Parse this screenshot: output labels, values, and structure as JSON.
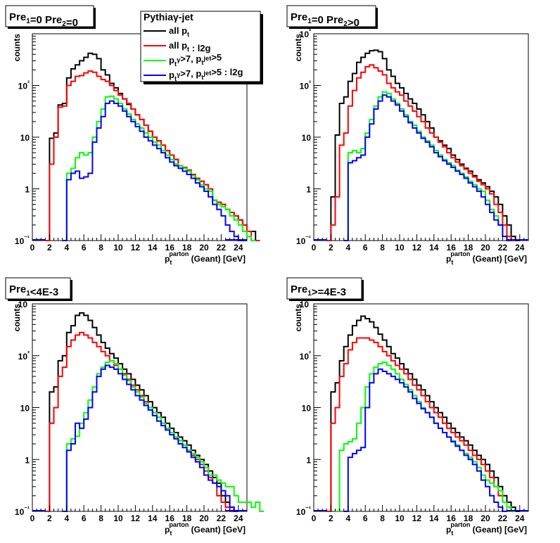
{
  "chart_data": [
    {
      "type": "histogram",
      "title": "Pre₁=0 Pre₂=0",
      "xlabel": "p_t^parton (Geant) [GeV]",
      "ylabel": "counts",
      "xlim": [
        0,
        25
      ],
      "ylim": [
        0.1,
        1000
      ],
      "log_y": true,
      "x_ticks": [
        "0",
        "2",
        "4",
        "6",
        "8",
        "10",
        "12",
        "14",
        "16",
        "18",
        "20",
        "22",
        "24"
      ],
      "y_ticks": [
        "10⁻¹",
        "1",
        "10",
        "10²"
      ],
      "bin_width": 0.5,
      "series": [
        {
          "name": "all p_t",
          "color": "#000000",
          "start": 1.5,
          "values": [
            0.1,
            9.5,
            12,
            42,
            45,
            140,
            210,
            250,
            300,
            350,
            420,
            400,
            330,
            200,
            160,
            110,
            90,
            70,
            55,
            43,
            35,
            27,
            22,
            17,
            13,
            10,
            8.5,
            7,
            5.5,
            4.5,
            3.7,
            2.8,
            2.6,
            2.3,
            1.9,
            1.6,
            1.4,
            1.2,
            1.0,
            0.6,
            0.55,
            0.5,
            0.4,
            0.35,
            0.3,
            0.25,
            0.2,
            0.15,
            0.15,
            0.1
          ]
        },
        {
          "name": "all p_t : l2g",
          "color": "#ff0000",
          "start": 1.5,
          "values": [
            0.1,
            3,
            10,
            38,
            40,
            100,
            120,
            150,
            155,
            175,
            190,
            180,
            150,
            130,
            120,
            100,
            80,
            65,
            55,
            45,
            35,
            27,
            22,
            17,
            13,
            10,
            8.5,
            7,
            5.5,
            4.5,
            3.7,
            2.8,
            2.6,
            2.3,
            1.9,
            1.6,
            1.4,
            1.2,
            1.0,
            0.6,
            0.55,
            0.5,
            0.4,
            0.35,
            0.3,
            0.25,
            0.2,
            0.15,
            0.1,
            0.1
          ]
        },
        {
          "name": "p_t^γ>7, p_t^jet>5",
          "color": "#00ff00",
          "start": 3.5,
          "values": [
            0.1,
            2,
            2.5,
            4,
            5,
            4.5,
            5,
            10,
            20,
            35,
            60,
            62,
            55,
            45,
            35,
            28,
            22,
            18,
            15,
            12,
            10,
            8,
            7,
            5.5,
            4.5,
            3.7,
            3,
            2.8,
            2.5,
            2.2,
            1.8,
            1.5,
            1.2,
            1.0,
            0.9,
            0.6,
            0.5,
            0.45,
            0.4,
            0.3,
            0.25,
            0.2,
            0.15,
            0.12,
            0.1
          ]
        },
        {
          "name": "p_t^γ>7, p_t^jet>5 : l2g",
          "color": "#0000ff",
          "start": 3.5,
          "values": [
            0.1,
            1.5,
            2,
            2.2,
            1.6,
            1.7,
            2,
            8,
            15,
            25,
            45,
            50,
            45,
            40,
            32,
            25,
            20,
            16,
            13,
            10,
            8.5,
            7,
            6,
            5,
            4,
            3.3,
            2.8,
            2.5,
            2.2,
            1.9,
            1.6,
            1.3,
            1.1,
            0.9,
            0.7,
            0.5,
            0.4,
            0.3,
            0.2,
            0.15,
            0.12,
            0.1,
            0.1
          ]
        }
      ]
    },
    {
      "type": "histogram",
      "title": "Pre₁=0 Pre₂>0",
      "xlabel": "p_t^parton (Geant) [GeV]",
      "ylabel": "counts",
      "xlim": [
        0,
        25
      ],
      "ylim": [
        0.1,
        1000
      ],
      "log_y": true,
      "x_ticks": [
        "0",
        "2",
        "4",
        "6",
        "8",
        "10",
        "12",
        "14",
        "16",
        "18",
        "20",
        "22",
        "24"
      ],
      "y_ticks": [
        "10⁻¹",
        "1",
        "10",
        "10²",
        "10³"
      ],
      "bin_width": 0.5,
      "series": [
        {
          "name": "all p_t",
          "color": "#000000",
          "start": 1.5,
          "values": [
            0.1,
            0.7,
            11,
            45,
            60,
            120,
            170,
            280,
            350,
            420,
            470,
            480,
            450,
            330,
            200,
            150,
            110,
            90,
            70,
            55,
            45,
            35,
            27,
            20,
            15,
            10,
            8.5,
            7,
            6,
            4.5,
            3.7,
            3,
            2.5,
            2.2,
            1.8,
            1.5,
            1.3,
            1.1,
            0.9,
            0.7,
            0.5,
            0.3,
            0.2,
            0.12,
            0.1
          ]
        },
        {
          "name": "all p_t : l2g",
          "color": "#ff0000",
          "start": 1.5,
          "values": [
            0.1,
            0.2,
            0.7,
            7,
            12,
            40,
            80,
            140,
            180,
            230,
            250,
            220,
            190,
            160,
            110,
            90,
            75,
            65,
            50,
            40,
            32,
            25,
            20,
            15,
            12,
            10,
            8,
            6.5,
            5,
            4,
            3.3,
            2.8,
            2.4,
            2,
            1.7,
            1.4,
            1.2,
            1.0,
            0.8,
            0.5,
            0.35,
            0.2,
            0.12,
            0.1
          ]
        },
        {
          "name": "p_t^γ>7, p_t^jet>5",
          "color": "#00ff00",
          "start": 3.5,
          "values": [
            0.1,
            5,
            5.5,
            5,
            6,
            12,
            22,
            40,
            60,
            75,
            70,
            55,
            45,
            35,
            27,
            20,
            17,
            13,
            10,
            8.5,
            7,
            5.5,
            4.5,
            3.7,
            3.2,
            2.8,
            2.3,
            2,
            1.7,
            1.4,
            1.2,
            1.0,
            0.9,
            0.6,
            0.4,
            0.3,
            0.2,
            0.12,
            0.1
          ]
        },
        {
          "name": "p_t^γ>7, p_t^jet>5 : l2g",
          "color": "#0000ff",
          "start": 3.5,
          "values": [
            0.1,
            3.2,
            3.5,
            4,
            4.5,
            10,
            18,
            35,
            50,
            65,
            60,
            50,
            42,
            32,
            25,
            19,
            15,
            12,
            9.5,
            8,
            6.5,
            5,
            4.2,
            3.5,
            3,
            2.6,
            2.2,
            1.9,
            1.6,
            1.3,
            1.1,
            0.9,
            0.7,
            0.5,
            0.35,
            0.25,
            0.2,
            0.12,
            0.1
          ]
        }
      ]
    },
    {
      "type": "histogram",
      "title": "Pre₁<4E-3",
      "xlabel": "p_t^parton (Geant) [GeV]",
      "ylabel": "counts",
      "xlim": [
        0,
        25
      ],
      "ylim": [
        0.1,
        1000
      ],
      "log_y": true,
      "x_ticks": [
        "0",
        "2",
        "4",
        "6",
        "8",
        "10",
        "12",
        "14",
        "16",
        "18",
        "20",
        "22",
        "24"
      ],
      "y_ticks": [
        "10⁻¹",
        "1",
        "10",
        "10²",
        "10³"
      ],
      "bin_width": 0.5,
      "series": [
        {
          "name": "all p_t",
          "color": "#000000",
          "start": 1.5,
          "values": [
            0.1,
            20,
            25,
            80,
            100,
            280,
            380,
            600,
            670,
            600,
            480,
            350,
            250,
            180,
            140,
            110,
            90,
            70,
            55,
            45,
            35,
            27,
            22,
            17,
            13,
            10,
            8,
            6.5,
            5,
            4,
            3.3,
            2.7,
            2.3,
            1.9,
            1.5,
            1.2,
            1.0,
            0.8,
            0.6,
            0.45,
            0.35,
            0.2,
            0.15,
            0.12,
            0.1
          ]
        },
        {
          "name": "all p_t : l2g",
          "color": "#ff0000",
          "start": 1.5,
          "values": [
            0.1,
            5,
            10,
            40,
            60,
            150,
            200,
            250,
            280,
            250,
            220,
            180,
            150,
            120,
            100,
            80,
            65,
            55,
            45,
            35,
            27,
            22,
            17,
            13,
            10,
            8,
            6.5,
            5,
            4,
            3.3,
            2.7,
            2.3,
            1.9,
            1.5,
            1.2,
            1.0,
            0.8,
            0.6,
            0.45,
            0.35,
            0.2,
            0.15,
            0.12,
            0.1
          ]
        },
        {
          "name": "p_t^γ>7, p_t^jet>5",
          "color": "#00ff00",
          "start": 3.5,
          "values": [
            0.1,
            2,
            2.5,
            2.8,
            5,
            8,
            14,
            25,
            45,
            60,
            75,
            80,
            70,
            55,
            42,
            33,
            25,
            20,
            16,
            12,
            10,
            8,
            6.5,
            5,
            4,
            3.3,
            2.7,
            2.3,
            1.9,
            1.5,
            1.3,
            1.1,
            0.9,
            0.7,
            0.5,
            0.5,
            0.4,
            0.35,
            0.3,
            0.3,
            0.2,
            0.15,
            0.15,
            0.15,
            0.12,
            0.15,
            0.1
          ]
        },
        {
          "name": "p_t^γ>7, p_t^jet>5 : l2g",
          "color": "#0000ff",
          "start": 3.5,
          "values": [
            0.1,
            1.5,
            2,
            5,
            4,
            6,
            10,
            20,
            40,
            55,
            65,
            60,
            55,
            45,
            35,
            28,
            22,
            17,
            14,
            11,
            9,
            7,
            5.5,
            4.5,
            3.7,
            3,
            2.5,
            2,
            1.7,
            1.4,
            1.1,
            0.9,
            0.7,
            0.5,
            0.4,
            0.35,
            0.3,
            0.25,
            0.2,
            0.12,
            0.1
          ]
        }
      ]
    },
    {
      "type": "histogram",
      "title": "Pre₁>=4E-3",
      "xlabel": "p_t^parton (Geant) [GeV]",
      "ylabel": "counts",
      "xlim": [
        0,
        25
      ],
      "ylim": [
        0.1,
        1000
      ],
      "log_y": true,
      "x_ticks": [
        "0",
        "2",
        "4",
        "6",
        "8",
        "10",
        "12",
        "14",
        "16",
        "18",
        "20",
        "22",
        "24"
      ],
      "y_ticks": [
        "10⁻¹",
        "1",
        "10",
        "10²",
        "10³"
      ],
      "bin_width": 0.5,
      "series": [
        {
          "name": "all p_t",
          "color": "#000000",
          "start": 1.5,
          "values": [
            0.1,
            20,
            30,
            80,
            150,
            250,
            380,
            480,
            580,
            520,
            450,
            350,
            260,
            200,
            150,
            110,
            90,
            70,
            55,
            45,
            35,
            27,
            22,
            17,
            13,
            10,
            8,
            6.5,
            5,
            4,
            3.3,
            2.7,
            2.3,
            1.9,
            1.5,
            1.2,
            1.0,
            0.8,
            0.6,
            0.45,
            0.3,
            0.2,
            0.15,
            0.12,
            0.1
          ]
        },
        {
          "name": "all p_t : l2g",
          "color": "#ff0000",
          "start": 1.5,
          "values": [
            0.1,
            5,
            10,
            40,
            70,
            130,
            180,
            220,
            220,
            220,
            200,
            180,
            150,
            120,
            100,
            80,
            65,
            55,
            45,
            35,
            27,
            22,
            17,
            13,
            10,
            8,
            6.5,
            5,
            4,
            3.3,
            2.7,
            2.3,
            1.9,
            1.5,
            1.2,
            1.0,
            0.8,
            0.6,
            0.45,
            0.3,
            0.2,
            0.15,
            0.12,
            0.1
          ]
        },
        {
          "name": "p_t^γ>7, p_t^jet>5",
          "color": "#00ff00",
          "start": 2.5,
          "values": [
            0.1,
            1.5,
            2,
            2.2,
            2.5,
            5,
            10,
            25,
            45,
            60,
            70,
            75,
            65,
            55,
            45,
            35,
            28,
            22,
            17,
            13,
            10,
            8,
            6.5,
            5,
            4,
            3.3,
            2.7,
            2.3,
            1.9,
            1.5,
            1.3,
            1.1,
            0.9,
            0.7,
            0.5,
            0.4,
            0.35,
            0.3,
            0.25,
            0.15,
            0.12,
            0.1
          ]
        },
        {
          "name": "p_t^γ>7, p_t^jet>5 : l2g",
          "color": "#0000ff",
          "start": 3.5,
          "values": [
            0.1,
            1.1,
            1.3,
            1.5,
            1.7,
            10,
            30,
            45,
            55,
            50,
            45,
            40,
            35,
            30,
            25,
            20,
            15,
            12,
            9.5,
            8,
            6.5,
            5,
            4,
            3.3,
            2.7,
            2.2,
            1.8,
            1.5,
            1.2,
            1.0,
            0.8,
            0.6,
            0.4,
            0.3,
            0.2,
            0.15,
            0.12,
            0.1
          ]
        }
      ]
    }
  ],
  "legend": {
    "title": "Pythiaγ-jet",
    "entries": [
      {
        "color": "#000000",
        "text": "all p_t"
      },
      {
        "color": "#ff0000",
        "text": "all p_t : l2g"
      },
      {
        "color": "#00ff00",
        "text": "p_t^γ>7, p_t^jet>5"
      },
      {
        "color": "#0000ff",
        "text": "p_t^γ>7, p_t^jet>5 : l2g"
      }
    ]
  }
}
